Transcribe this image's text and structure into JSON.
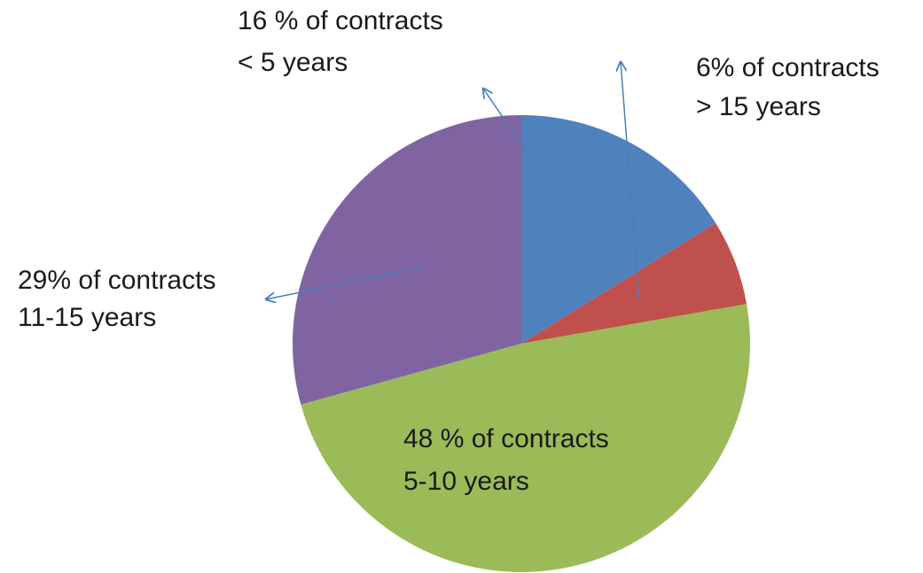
{
  "chart_data": {
    "type": "pie",
    "categories": [
      "< 5 years",
      "> 15 years",
      "5-10 years",
      "11-15 years"
    ],
    "values": [
      16,
      6,
      48,
      29
    ],
    "value_labels": [
      "16 % of contracts",
      "6% of contracts",
      "48 % of contracts",
      "29% of contracts"
    ],
    "colors": [
      "#4f81bd",
      "#c0504d",
      "#9bbb59",
      "#8064a2"
    ]
  }
}
